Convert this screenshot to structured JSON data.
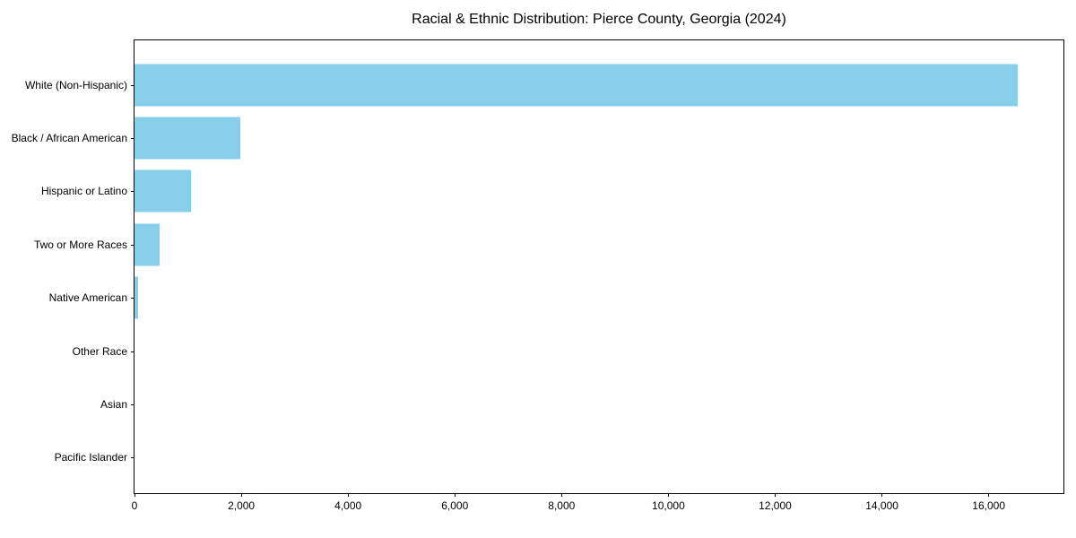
{
  "chart_data": {
    "type": "bar",
    "orientation": "horizontal",
    "title": "Racial & Ethnic Distribution: Pierce County, Georgia (2024)",
    "categories": [
      "White (Non-Hispanic)",
      "Black / African American",
      "Hispanic or Latino",
      "Two or More Races",
      "Native American",
      "Other Race",
      "Asian",
      "Pacific Islander"
    ],
    "values": [
      16550,
      1980,
      1060,
      470,
      65,
      0,
      0,
      0
    ],
    "bar_color": "#87CEEB",
    "background_color": "#ffffff",
    "axis_color": "#000000",
    "xlabel": "",
    "ylabel": "",
    "xlim": [
      0,
      17400
    ],
    "x_ticks": [
      0,
      2000,
      4000,
      6000,
      8000,
      10000,
      12000,
      14000,
      16000
    ],
    "x_tick_labels": [
      "0",
      "2,000",
      "4,000",
      "6,000",
      "8,000",
      "10,000",
      "12,000",
      "14,000",
      "16,000"
    ],
    "grid": false,
    "legend": false,
    "sort_order": "descending"
  }
}
